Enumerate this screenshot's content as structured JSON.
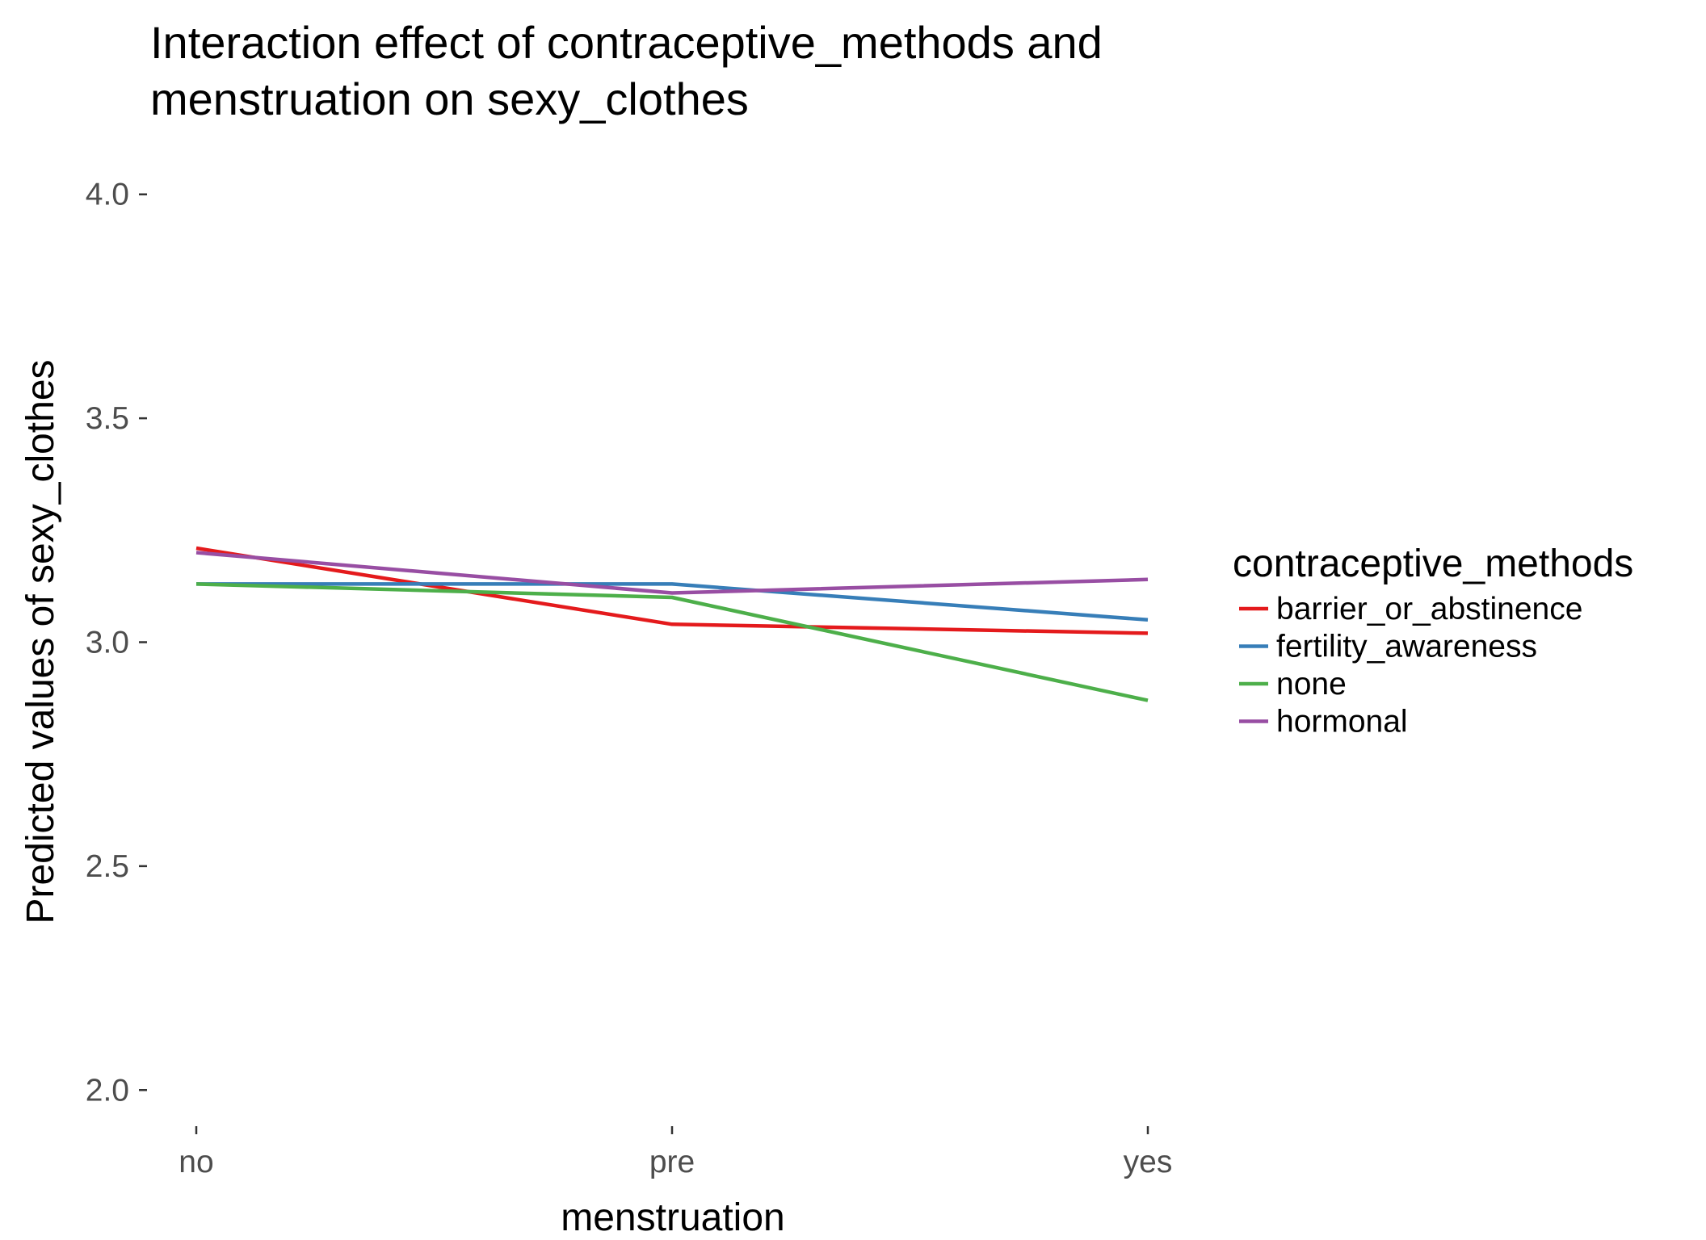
{
  "chart_data": {
    "type": "line",
    "title": "Interaction effect of contraceptive_methods and menstruation on sexy_clothes",
    "title_lines": [
      "Interaction effect of contraceptive_methods and",
      "menstruation on sexy_clothes"
    ],
    "xlabel": "menstruation",
    "ylabel": "Predicted values of sexy_clothes",
    "categories": [
      "no",
      "pre",
      "yes"
    ],
    "ylim": [
      1.95,
      4.05
    ],
    "yticks": [
      2.0,
      2.5,
      3.0,
      3.5,
      4.0
    ],
    "ytick_labels": [
      "2.0",
      "2.5",
      "3.0",
      "3.5",
      "4.0"
    ],
    "grid": false,
    "legend": {
      "title": "contraceptive_methods",
      "position": "right"
    },
    "series": [
      {
        "name": "barrier_or_abstinence",
        "color": "#e41a1c",
        "values": [
          3.21,
          3.04,
          3.02
        ]
      },
      {
        "name": "fertility_awareness",
        "color": "#377eb8",
        "values": [
          3.13,
          3.13,
          3.05
        ]
      },
      {
        "name": "none",
        "color": "#4daf4a",
        "values": [
          3.13,
          3.1,
          2.87
        ]
      },
      {
        "name": "hormonal",
        "color": "#984ea3",
        "values": [
          3.2,
          3.11,
          3.14
        ]
      }
    ]
  }
}
